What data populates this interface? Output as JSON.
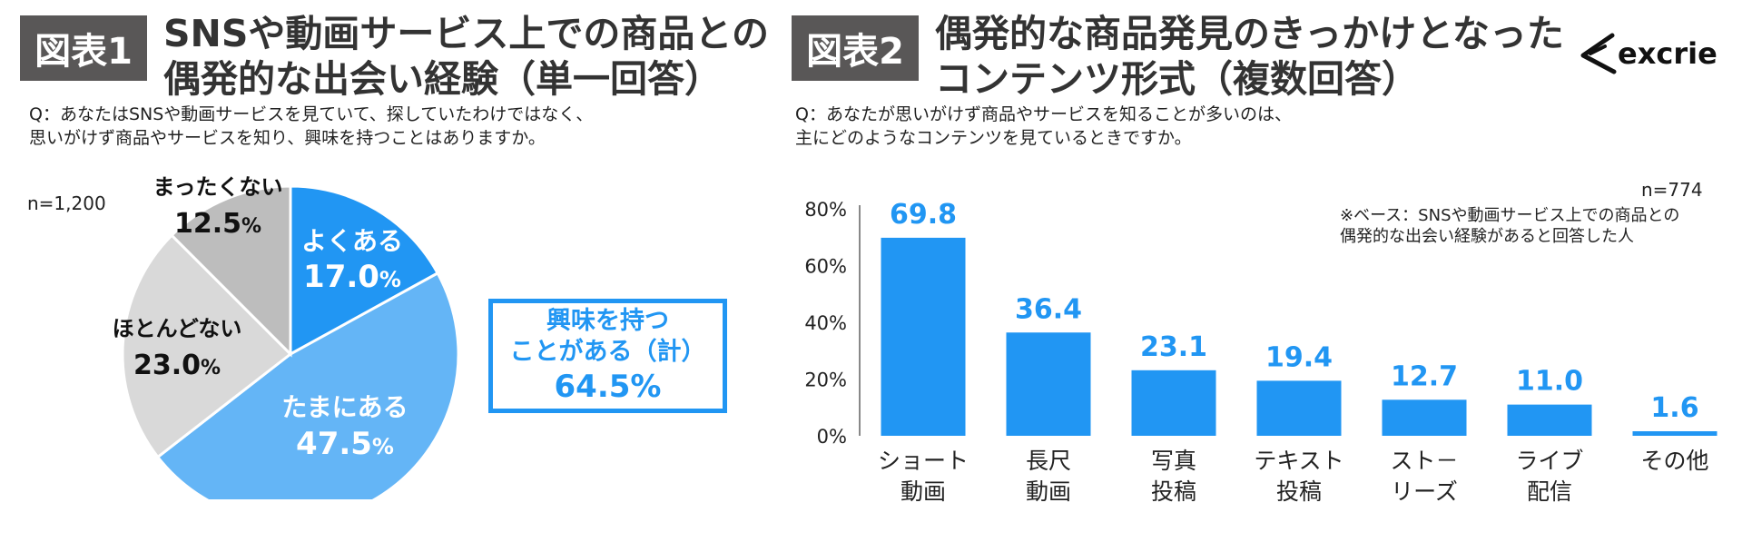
{
  "figure1": {
    "badge": "図表1",
    "title_line1": "SNSや動画サービス上での商品との",
    "title_line2": "偶発的な出会い経験（単一回答）",
    "question_line1": "Q：あなたはSNSや動画サービスを見ていて、探していたわけではなく、",
    "question_line2": "思いがけず商品やサービスを知り、興味を持つことはありますか。",
    "n": "n=1,200",
    "callout": {
      "line1": "興味を持つ",
      "line2": "ことがある（計）",
      "value": "64.5%"
    }
  },
  "figure2": {
    "badge": "図表2",
    "title_line1": "偶発的な商品発見のきっかけとなった",
    "title_line2": "コンテンツ形式（複数回答）",
    "question_line1": "Q：あなたが思いがけず商品やサービスを知ることが多いのは、",
    "question_line2": "主にどのようなコンテンツを見ているときですか。",
    "n": "n=774",
    "note_line1": "※ベース：SNSや動画サービス上での商品との",
    "note_line2": "偶発的な出会い経験があると回答した人"
  },
  "logo": {
    "text": "excrie"
  },
  "chart_data": [
    {
      "type": "pie",
      "slices": [
        {
          "label": "よくある",
          "value": 17.0,
          "display": "17.0",
          "color": "#2196F3",
          "text_color": "#ffffff"
        },
        {
          "label": "たまにある",
          "value": 47.5,
          "display": "47.5",
          "color": "#64B5F6",
          "text_color": "#ffffff"
        },
        {
          "label": "ほとんどない",
          "value": 23.0,
          "display": "23.0",
          "color": "#D9D9D9",
          "text_color": "#111111"
        },
        {
          "label": "まったくない",
          "value": 12.5,
          "display": "12.5",
          "color": "#BDBDBD",
          "text_color": "#111111"
        }
      ],
      "unit": "%",
      "start": "12 o'clock, clockwise"
    },
    {
      "type": "bar",
      "categories": [
        [
          "ショート",
          "動画"
        ],
        [
          "長尺",
          "動画"
        ],
        [
          "写真",
          "投稿"
        ],
        [
          "テキスト",
          "投稿"
        ],
        [
          "スト－",
          "リーズ"
        ],
        [
          "ライブ",
          "配信"
        ],
        [
          "その他"
        ]
      ],
      "values": [
        69.8,
        36.4,
        23.1,
        19.4,
        12.7,
        11.0,
        1.6
      ],
      "value_labels": [
        "69.8",
        "36.4",
        "23.1",
        "19.4",
        "12.7",
        "11.0",
        "1.6"
      ],
      "yticks": [
        "0%",
        "20%",
        "40%",
        "60%",
        "80%"
      ],
      "ylim": [
        0,
        80
      ],
      "bar_color": "#2196F3",
      "label_color": "#2196F3",
      "grid": false
    }
  ]
}
